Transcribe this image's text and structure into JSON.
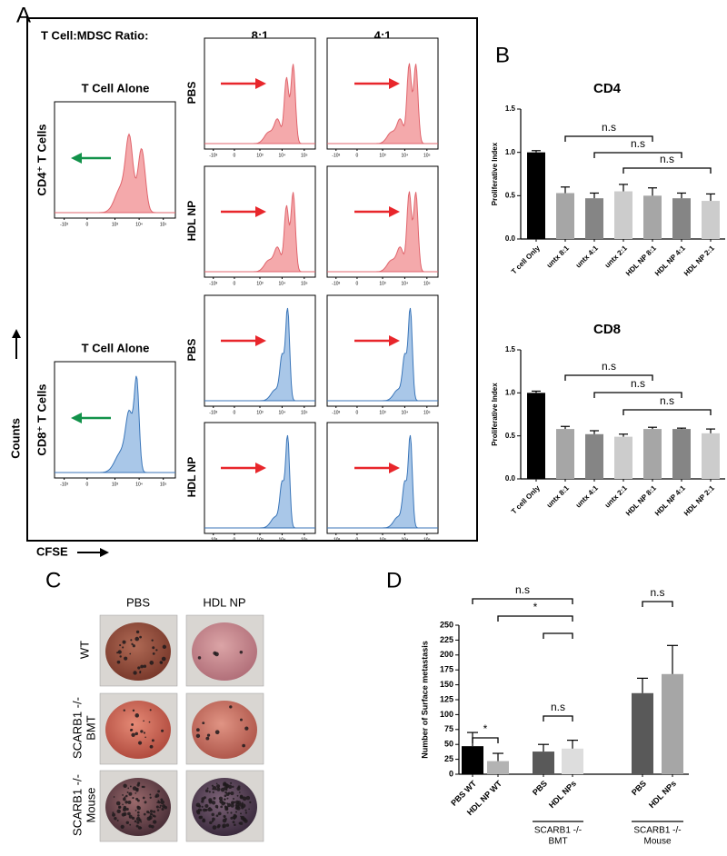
{
  "panel_labels": [
    "A",
    "B",
    "C",
    "D"
  ],
  "panel_a": {
    "ratio_label": "T Cell:MDSC Ratio:",
    "ratios": [
      "8:1",
      "4:1"
    ],
    "alone_label": "T Cell Alone",
    "cd4_label": "CD4⁺ T Cells",
    "cd8_label": "CD8⁺ T Cells",
    "treatments": [
      "PBS",
      "HDL NP"
    ],
    "x_tick_labels": [
      "-10³",
      "0",
      "10³",
      "10⁴",
      "10⁵"
    ],
    "y_axis_label": "Counts",
    "x_axis_label": "CFSE"
  },
  "panel_c": {
    "columns": [
      "PBS",
      "HDL NP"
    ],
    "rows": [
      [
        "WT"
      ],
      [
        "SCARB1 -/-",
        "BMT"
      ],
      [
        "SCARB1 -/-",
        "Mouse"
      ]
    ]
  },
  "chart_data": [
    {
      "type": "bar",
      "title": "CD4",
      "ylabel": "Proliferative Index",
      "categories": [
        "T cell Only",
        "untx 8:1",
        "untx 4:1",
        "untx 2:1",
        "HDL NP 8:1",
        "HDL NP 4:1",
        "HDL NP 2:1"
      ],
      "values": [
        1.0,
        0.53,
        0.47,
        0.55,
        0.5,
        0.47,
        0.44
      ],
      "errors": [
        0.02,
        0.07,
        0.06,
        0.08,
        0.09,
        0.06,
        0.08
      ],
      "colors": [
        "#000000",
        "#a6a6a6",
        "#858585",
        "#cccccc",
        "#a6a6a6",
        "#858585",
        "#cccccc"
      ],
      "ylim": [
        0,
        1.5
      ],
      "yticks": [
        {
          "value": 0,
          "label": "0.0"
        },
        {
          "value": 0.5,
          "label": "0.5"
        },
        {
          "value": 1,
          "label": "1.0"
        },
        {
          "value": 1.5,
          "label": "1.5"
        }
      ],
      "annotations": [
        "n.s",
        "n.s",
        "n.s"
      ]
    },
    {
      "type": "bar",
      "title": "CD8",
      "ylabel": "Proliferative Index",
      "categories": [
        "T cell Only",
        "untx 8:1",
        "untx 4:1",
        "untx 2:1",
        "HDL NP 8:1",
        "HDL NP 4:1",
        "HDL NP 2:1"
      ],
      "values": [
        1.0,
        0.58,
        0.52,
        0.49,
        0.58,
        0.58,
        0.53
      ],
      "errors": [
        0.02,
        0.03,
        0.04,
        0.03,
        0.02,
        0.01,
        0.05
      ],
      "colors": [
        "#000000",
        "#a6a6a6",
        "#858585",
        "#cccccc",
        "#a6a6a6",
        "#858585",
        "#cccccc"
      ],
      "ylim": [
        0,
        1.5
      ],
      "yticks": [
        {
          "value": 0,
          "label": "0.0"
        },
        {
          "value": 0.5,
          "label": "0.5"
        },
        {
          "value": 1,
          "label": "1.0"
        },
        {
          "value": 1.5,
          "label": "1.5"
        }
      ],
      "annotations": [
        "n.s",
        "n.s",
        "n.s"
      ]
    },
    {
      "type": "bar",
      "ylabel": "Number of Surface metastasis",
      "categories": [
        "PBS WT",
        "HDL NP WT",
        "PBS",
        "HDL NPs",
        "PBS",
        "HDL NPs"
      ],
      "values": [
        47,
        22,
        38,
        43,
        136,
        168
      ],
      "errors": [
        23,
        13,
        12,
        14,
        25,
        48
      ],
      "colors": [
        "#000000",
        "#b3b3b3",
        "#595959",
        "#dddddd",
        "#595959",
        "#a6a6a6"
      ],
      "ylim": [
        0,
        250
      ],
      "yticks": [
        0,
        25,
        50,
        75,
        100,
        125,
        150,
        175,
        200,
        225,
        250
      ],
      "groups": [
        [
          "SCARB1 -/-",
          "BMT"
        ],
        [
          "SCARB1 -/-",
          "Mouse"
        ]
      ],
      "annotations": [
        "n.s",
        "*",
        "*",
        "n.s",
        "n.s"
      ]
    }
  ]
}
